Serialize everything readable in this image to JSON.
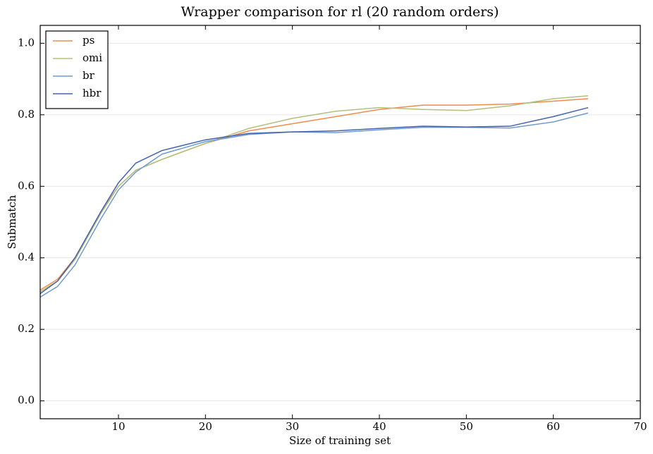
{
  "chart_data": {
    "type": "line",
    "title": "Wrapper comparison for rl (20 random orders)",
    "x_label": "Size of training set",
    "y_label": "Submatch",
    "x": [
      1,
      3,
      5,
      8,
      10,
      12,
      15,
      20,
      25,
      30,
      35,
      40,
      45,
      50,
      55,
      60,
      64
    ],
    "series": [
      {
        "name": "ps",
        "color": "#ee8d4e",
        "values": [
          0.31,
          0.34,
          0.4,
          0.53,
          0.6,
          0.645,
          0.675,
          0.72,
          0.755,
          0.775,
          0.795,
          0.815,
          0.827,
          0.827,
          0.83,
          0.838,
          0.845
        ]
      },
      {
        "name": "omi",
        "color": "#b3c07c",
        "values": [
          0.305,
          0.335,
          0.395,
          0.525,
          0.6,
          0.645,
          0.675,
          0.72,
          0.762,
          0.79,
          0.81,
          0.82,
          0.815,
          0.812,
          0.825,
          0.845,
          0.853
        ]
      },
      {
        "name": "br",
        "color": "#6f9bd1",
        "values": [
          0.29,
          0.32,
          0.38,
          0.51,
          0.59,
          0.64,
          0.69,
          0.725,
          0.745,
          0.752,
          0.75,
          0.758,
          0.765,
          0.765,
          0.763,
          0.78,
          0.805
        ]
      },
      {
        "name": "hbr",
        "color": "#4563ad",
        "values": [
          0.3,
          0.335,
          0.4,
          0.53,
          0.61,
          0.665,
          0.7,
          0.73,
          0.748,
          0.752,
          0.755,
          0.762,
          0.768,
          0.766,
          0.768,
          0.795,
          0.82
        ]
      }
    ],
    "xlim": [
      1,
      70
    ],
    "xticks": [
      10,
      20,
      30,
      40,
      50,
      60,
      70
    ],
    "ylim": [
      -0.05,
      1.05
    ],
    "yticks": [
      {
        "value": 0,
        "label": "0.0"
      },
      0.2,
      0.4,
      0.6,
      0.8,
      {
        "value": 1,
        "label": "1.0"
      }
    ],
    "grid": "y",
    "legend": "upper left"
  }
}
